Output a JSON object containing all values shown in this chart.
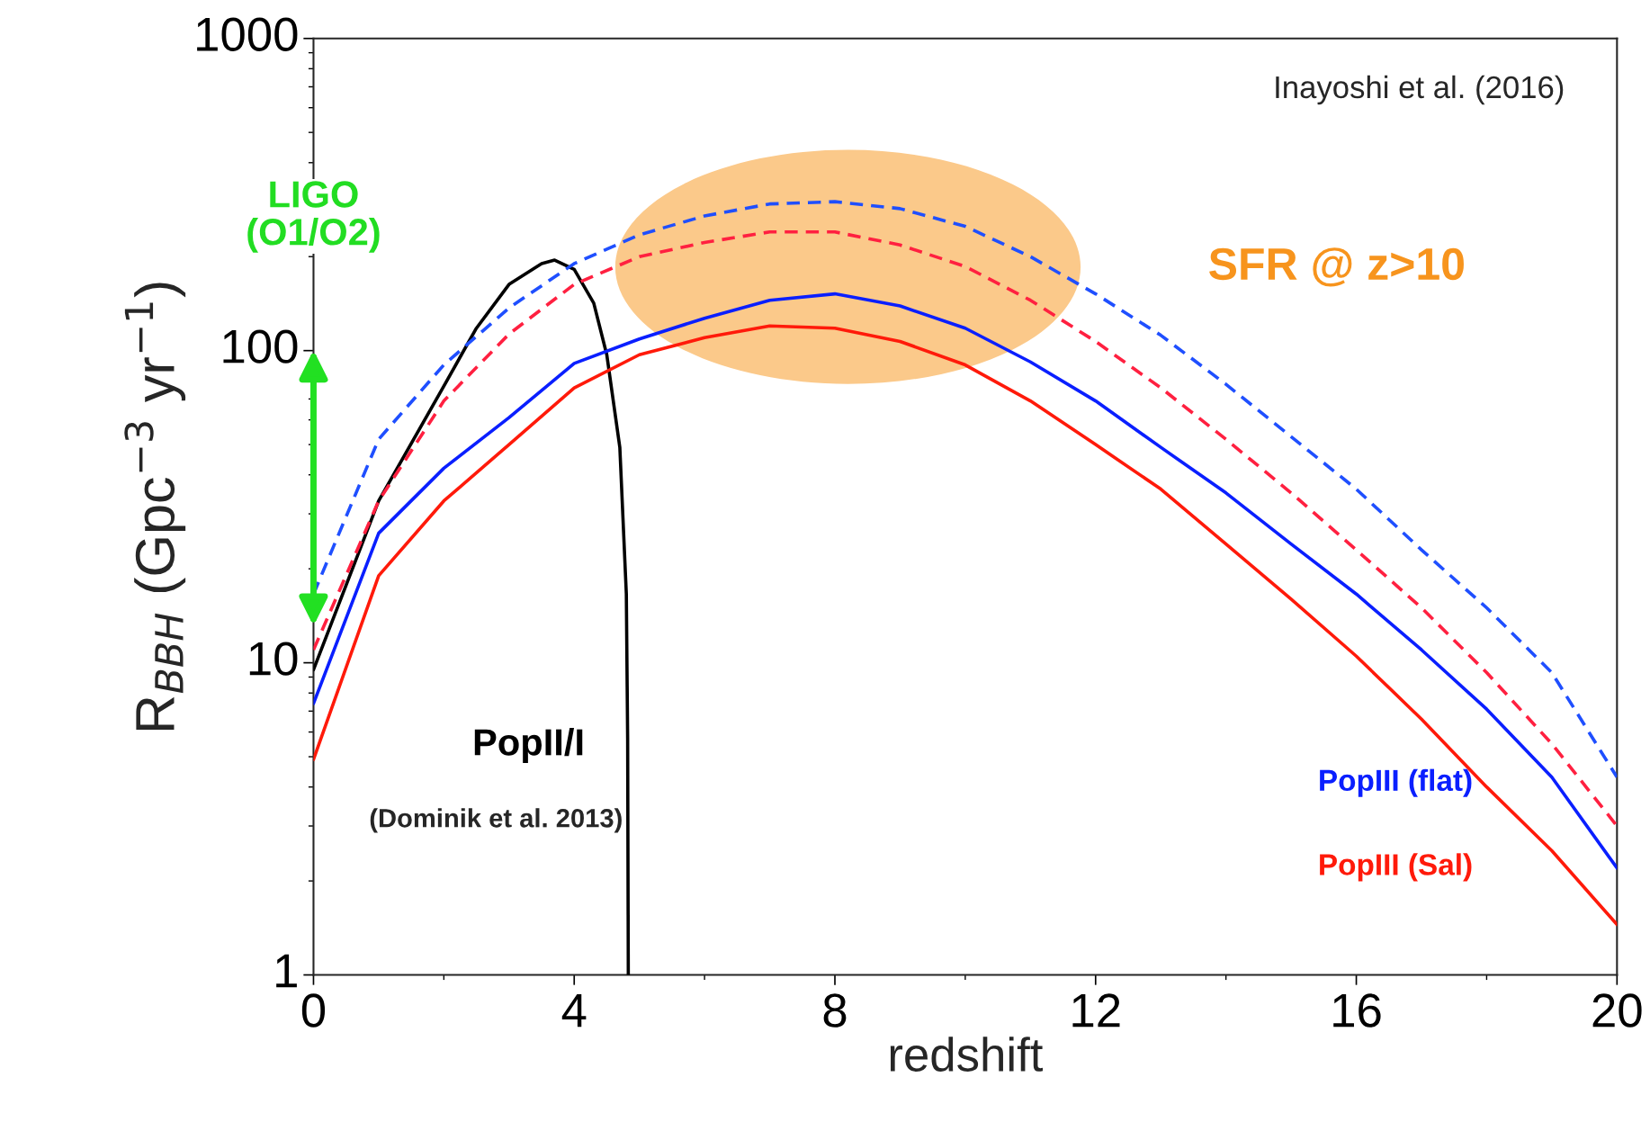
{
  "chart_data": {
    "type": "line",
    "xlabel": "redshift",
    "ylabel": "R$_{BBH}$ (Gpc$^{−3}$ yr$^{−1}$)",
    "log": "y",
    "grid": false,
    "xlim": [
      0,
      20
    ],
    "xticks": [
      0,
      {
        "value": 2,
        "label": null
      },
      4,
      {
        "value": 6,
        "label": null
      },
      8,
      {
        "value": 10,
        "label": null
      },
      12,
      {
        "value": 14,
        "label": null
      },
      16,
      {
        "value": 18,
        "label": null
      },
      20
    ],
    "ylim": [
      1,
      1000
    ],
    "yticks": [
      1,
      10,
      100,
      1000
    ],
    "series": [
      {
        "name": "PopII/I",
        "color": "#000000",
        "line_style": "solid",
        "x": [
          0,
          1,
          2,
          2.5,
          3,
          3.5,
          3.7,
          4,
          4.3,
          4.5,
          4.7,
          4.8,
          4.82,
          4.83
        ],
        "values": [
          9.5,
          33,
          77,
          118,
          163,
          190,
          195,
          182,
          142,
          97,
          49,
          16.6,
          5.7,
          1
        ]
      },
      {
        "color": "#1f4fff",
        "line_style": "dashed",
        "x": [
          0,
          1,
          2,
          3,
          4,
          5,
          6,
          7,
          8,
          9,
          10,
          11,
          12,
          13,
          14,
          15,
          16,
          17,
          18,
          19,
          20
        ],
        "values": [
          16.6,
          52,
          90,
          137,
          190,
          235,
          270,
          295,
          300,
          285,
          250,
          200,
          152,
          112,
          78,
          53,
          36,
          23,
          15,
          9.3,
          4.3
        ]
      },
      {
        "color": "#ff2040",
        "line_style": "dashed",
        "x": [
          0,
          1,
          2,
          3,
          4,
          5,
          6,
          7,
          8,
          9,
          10,
          11,
          12,
          13,
          14,
          15,
          16,
          17,
          18,
          19,
          20
        ],
        "values": [
          11,
          33,
          69,
          113,
          163,
          200,
          222,
          240,
          240,
          218,
          186,
          145,
          107,
          76,
          52,
          35,
          23,
          15,
          9.3,
          5.5,
          3
        ]
      },
      {
        "name": "PopIII (flat)",
        "color": "#0a1fff",
        "line_style": "solid",
        "x": [
          0,
          1,
          2,
          3,
          4,
          5,
          6,
          7,
          8,
          9,
          10,
          11,
          12,
          13,
          14,
          15,
          16,
          17,
          18,
          19,
          20
        ],
        "values": [
          7.4,
          26,
          42,
          61,
          91,
          109,
          127,
          145,
          152,
          139,
          118,
          92,
          69,
          49,
          35,
          24,
          16.6,
          11,
          7.1,
          4.3,
          2.2
        ]
      },
      {
        "name": "PopIII (Sal)",
        "color": "#ff1a0a",
        "line_style": "solid",
        "x": [
          0,
          1,
          2,
          3,
          4,
          5,
          6,
          7,
          8,
          9,
          10,
          11,
          12,
          13,
          14,
          15,
          16,
          17,
          18,
          19,
          20
        ],
        "values": [
          4.9,
          19,
          33,
          50,
          76,
          97,
          110,
          120,
          118,
          107,
          90,
          69,
          50,
          36,
          24,
          16,
          10.5,
          6.6,
          4,
          2.5,
          1.45
        ]
      }
    ],
    "annotations": [
      "Inayoshi et al. (2016)",
      "LIGO\n(O1/O2)",
      "SFR @ z>10",
      "(Dominik et al. 2013)"
    ]
  }
}
